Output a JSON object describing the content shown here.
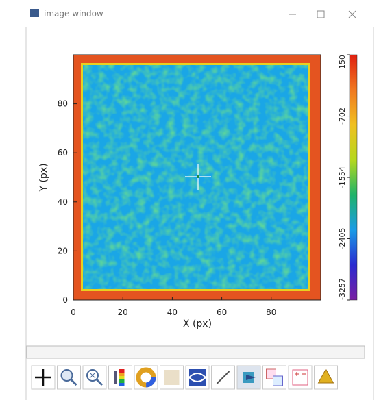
{
  "window": {
    "title": "image window"
  },
  "chart_data": {
    "type": "heatmap",
    "xlabel": "X (px)",
    "ylabel": "Y (px)",
    "xlim": [
      0,
      100
    ],
    "ylim": [
      0,
      100
    ],
    "xticks": [
      0,
      20,
      40,
      60,
      80
    ],
    "yticks": [
      0,
      20,
      40,
      60,
      80
    ],
    "colorbar": {
      "lim": [
        -3257,
        150
      ],
      "ticks": [
        150,
        -702,
        -1554,
        -2405,
        -3257
      ],
      "colors": [
        "#7a1fa2",
        "#2a2ad0",
        "#1a9be6",
        "#1fb36a",
        "#b5d81e",
        "#f0c020",
        "#f07820",
        "#e02010"
      ]
    }
  }
}
